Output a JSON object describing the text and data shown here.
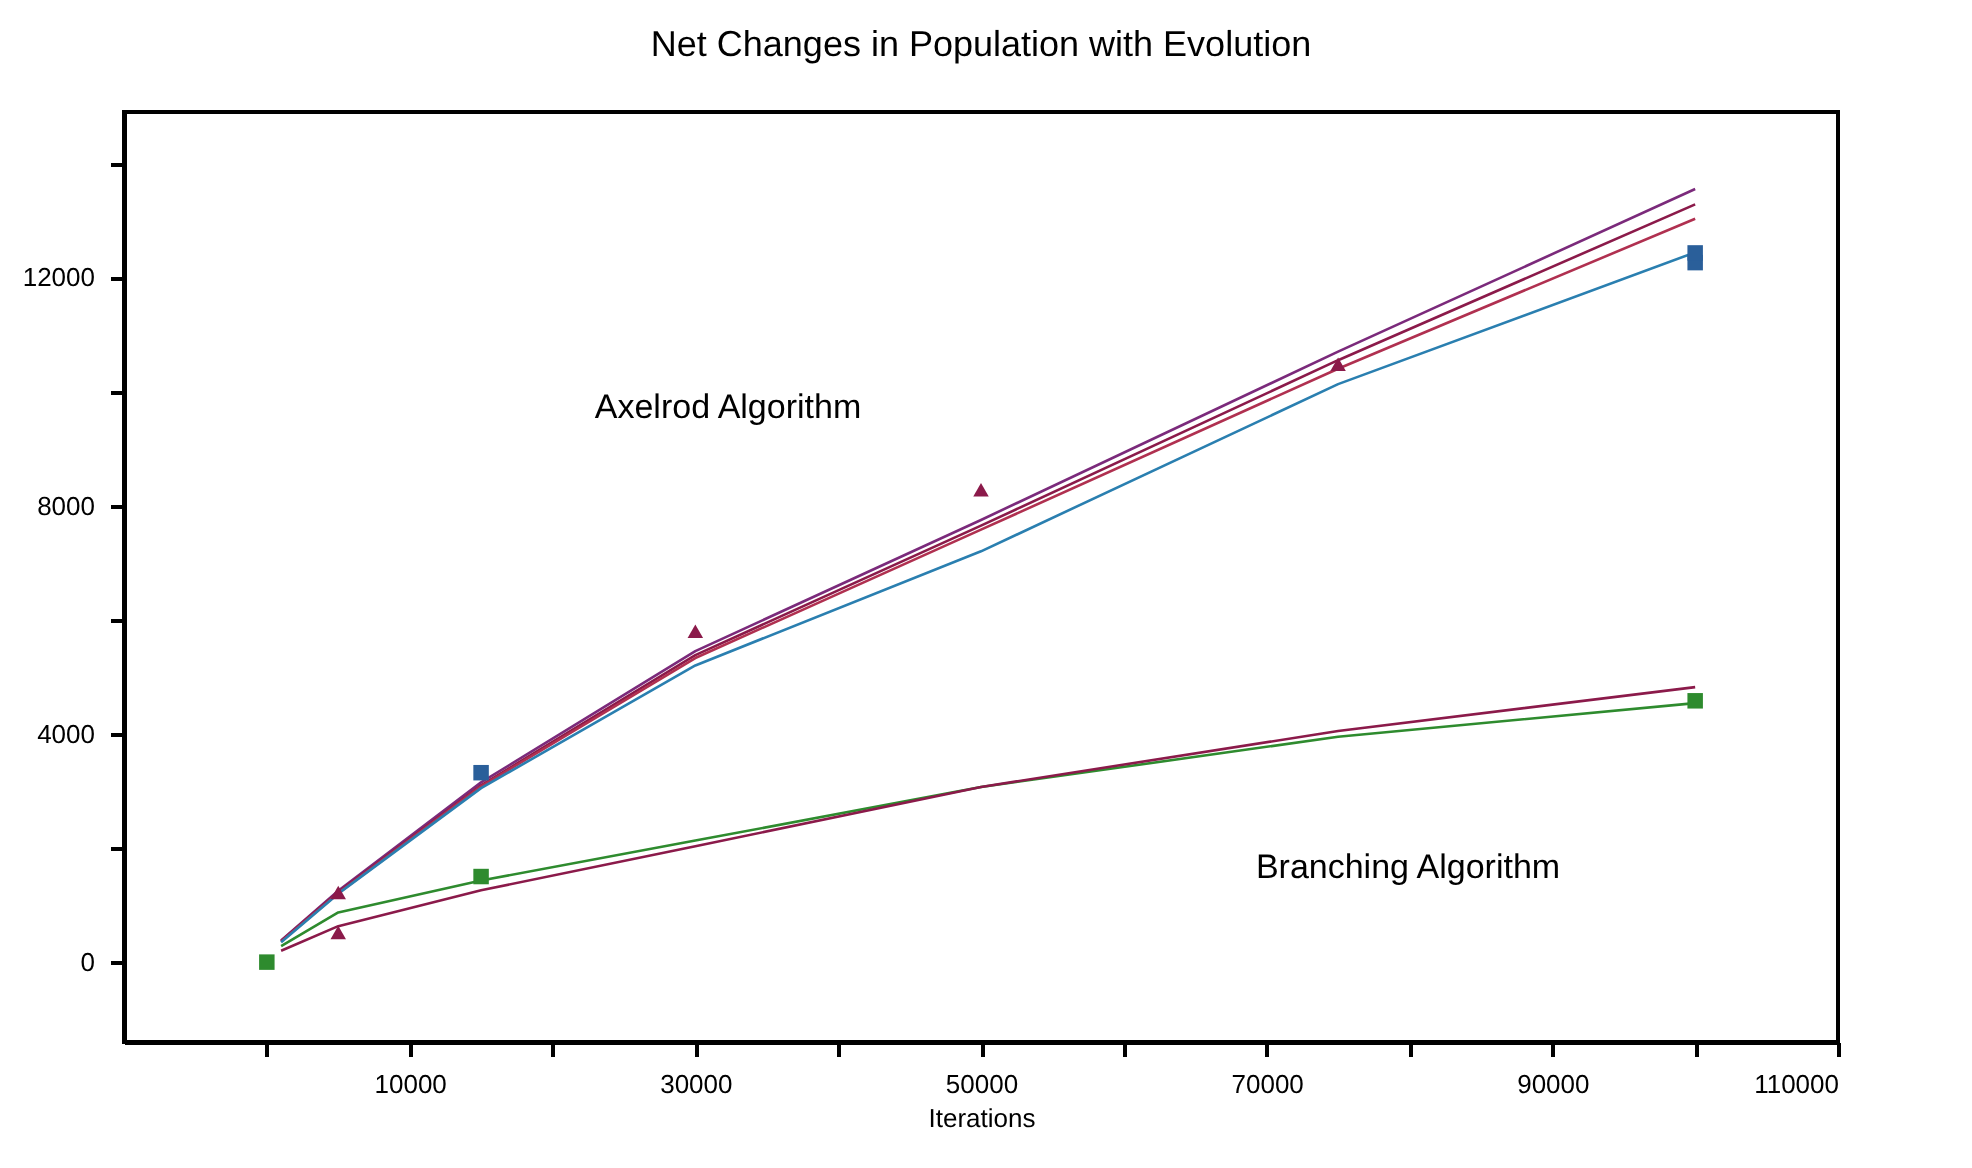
{
  "chart_data": {
    "type": "line",
    "title": "Net Changes in Population with Evolution",
    "xlabel": "Iterations",
    "xlim": [
      -10000,
      110000
    ],
    "ylim": [
      -1400,
      14900
    ],
    "xticks": [
      {
        "value": 0,
        "label": null
      },
      10000,
      {
        "value": 20000,
        "label": null
      },
      30000,
      {
        "value": 40000,
        "label": null
      },
      50000,
      {
        "value": 60000,
        "label": null
      },
      70000,
      {
        "value": 80000,
        "label": null
      },
      90000,
      {
        "value": 100000,
        "label": null
      },
      110000
    ],
    "yticks": [
      0,
      {
        "value": 2000,
        "label": null
      },
      4000,
      {
        "value": 6000,
        "label": null
      },
      8000,
      {
        "value": 10000,
        "label": null
      },
      12000,
      {
        "value": 14000,
        "label": null
      }
    ],
    "grid": false,
    "marker": "none",
    "series": [
      {
        "color": "#7b2a7b",
        "x": [
          1000,
          5000,
          15000,
          30000,
          50000,
          75000,
          100000
        ],
        "values": [
          380,
          1250,
          3150,
          5450,
          7750,
          10700,
          13550
        ]
      },
      {
        "color": "#8b1a4a",
        "x": [
          1000,
          5000,
          15000,
          30000,
          50000,
          75000,
          100000
        ],
        "values": [
          370,
          1230,
          3100,
          5380,
          7650,
          10550,
          13280
        ]
      },
      {
        "color": "#b03050",
        "x": [
          1000,
          5000,
          15000,
          30000,
          50000,
          75000,
          100000
        ],
        "values": [
          360,
          1210,
          3080,
          5330,
          7580,
          10400,
          13030
        ]
      },
      {
        "color": "#2a7fb0",
        "x": [
          1000,
          5000,
          15000,
          30000,
          50000,
          75000,
          100000
        ],
        "values": [
          350,
          1200,
          3050,
          5200,
          7200,
          10130,
          12440
        ]
      },
      {
        "color": "#2e8b2e",
        "x": [
          1000,
          5000,
          15000,
          30000,
          50000,
          75000,
          100000
        ],
        "values": [
          280,
          870,
          1430,
          2130,
          3070,
          3950,
          4540
        ]
      },
      {
        "color": "#8b1a4a",
        "x": [
          1000,
          5000,
          15000,
          30000,
          50000,
          75000,
          100000
        ],
        "values": [
          200,
          630,
          1260,
          2030,
          3070,
          4050,
          4820
        ]
      },
      {
        "type": "scatter",
        "marker": "square",
        "color": "#2e8b2e",
        "x": [
          0,
          15000,
          100000
        ],
        "values": [
          0,
          1500,
          4580
        ]
      },
      {
        "type": "scatter",
        "marker": "triangle",
        "color": "#8b1a4a",
        "x": [
          5000,
          5000,
          30000,
          50000,
          75000
        ],
        "values": [
          1220,
          520,
          5800,
          8280,
          10480
        ]
      },
      {
        "type": "scatter",
        "marker": "square",
        "color": "#2a5f9a",
        "x": [
          15000,
          100000,
          100000
        ],
        "values": [
          3320,
          12260,
          12430
        ]
      }
    ],
    "annotations": [
      "Axelrod Algorithm",
      "Branching Algorithm"
    ]
  }
}
